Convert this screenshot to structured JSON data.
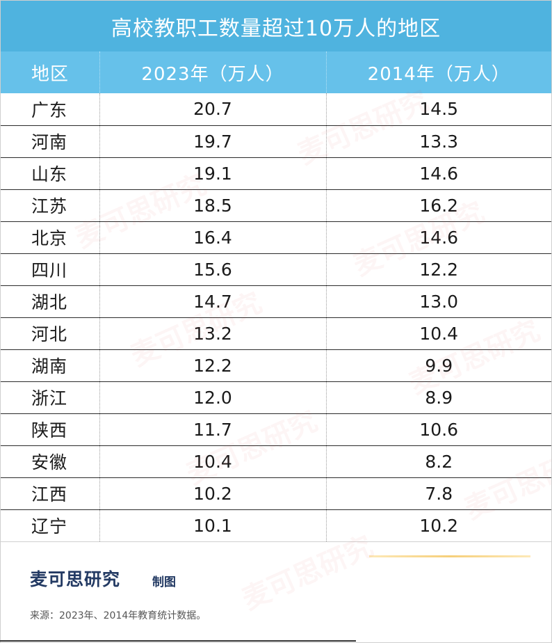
{
  "title": "高校教职工数量超过10万人的地区",
  "table": {
    "headers": [
      "地区",
      "2023年（万人）",
      "2014年（万人）"
    ],
    "rows": [
      {
        "region": "广东",
        "y2023": "20.7",
        "y2014": "14.5"
      },
      {
        "region": "河南",
        "y2023": "19.7",
        "y2014": "13.3"
      },
      {
        "region": "山东",
        "y2023": "19.1",
        "y2014": "14.6"
      },
      {
        "region": "江苏",
        "y2023": "18.5",
        "y2014": "16.2"
      },
      {
        "region": "北京",
        "y2023": "16.4",
        "y2014": "14.6"
      },
      {
        "region": "四川",
        "y2023": "15.6",
        "y2014": "12.2"
      },
      {
        "region": "湖北",
        "y2023": "14.7",
        "y2014": "13.0"
      },
      {
        "region": "河北",
        "y2023": "13.2",
        "y2014": "10.4"
      },
      {
        "region": "湖南",
        "y2023": "12.2",
        "y2014": "9.9"
      },
      {
        "region": "浙江",
        "y2023": "12.0",
        "y2014": "8.9"
      },
      {
        "region": "陕西",
        "y2023": "11.7",
        "y2014": "10.6"
      },
      {
        "region": "安徽",
        "y2023": "10.4",
        "y2014": "8.2"
      },
      {
        "region": "江西",
        "y2023": "10.2",
        "y2014": "7.8"
      },
      {
        "region": "辽宁",
        "y2023": "10.1",
        "y2014": "10.2"
      }
    ]
  },
  "footer": {
    "brand": "麦可思研究",
    "brand_suffix": "制图",
    "source": "来源：2023年、2014年教育统计数据。"
  },
  "watermark": "麦可思研究",
  "colors": {
    "title_bg": "#4fb3df",
    "header_bg": "#66c1ea",
    "brand_text": "#233a63",
    "accent_line": "#f6cf7a"
  }
}
